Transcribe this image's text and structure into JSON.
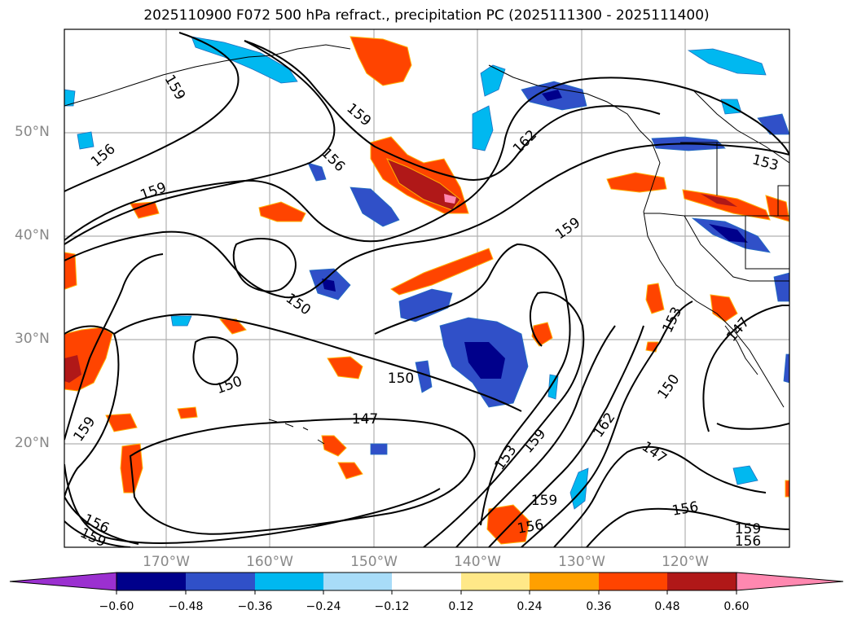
{
  "title": "2025110900 F072 500 hPa refract., precipitation PC (2025111300 - 2025111400)",
  "map": {
    "lat_labels": [
      "50°N",
      "40°N",
      "30°N",
      "20°N"
    ],
    "lon_labels": [
      "170°W",
      "160°W",
      "150°W",
      "140°W",
      "130°W",
      "120°W"
    ],
    "contour_labels": [
      "159",
      "156",
      "159",
      "156",
      "159",
      "162",
      "159",
      "150",
      "150",
      "150",
      "147",
      "159",
      "153",
      "159",
      "162",
      "150",
      "153",
      "147",
      "147",
      "159",
      "156",
      "156",
      "159",
      "156",
      "153",
      "156",
      "159"
    ]
  },
  "colorbar": {
    "ticks": [
      "−0.60",
      "−0.48",
      "−0.36",
      "−0.24",
      "−0.12",
      "0.12",
      "0.24",
      "0.36",
      "0.48",
      "0.60"
    ],
    "colors": [
      "#9b30d0",
      "#00008b",
      "#3050c8",
      "#00b8f0",
      "#a8dcf8",
      "#ffffff",
      "#ffe888",
      "#ffa000",
      "#ff4400",
      "#b01818",
      "#ff88b0"
    ]
  }
}
